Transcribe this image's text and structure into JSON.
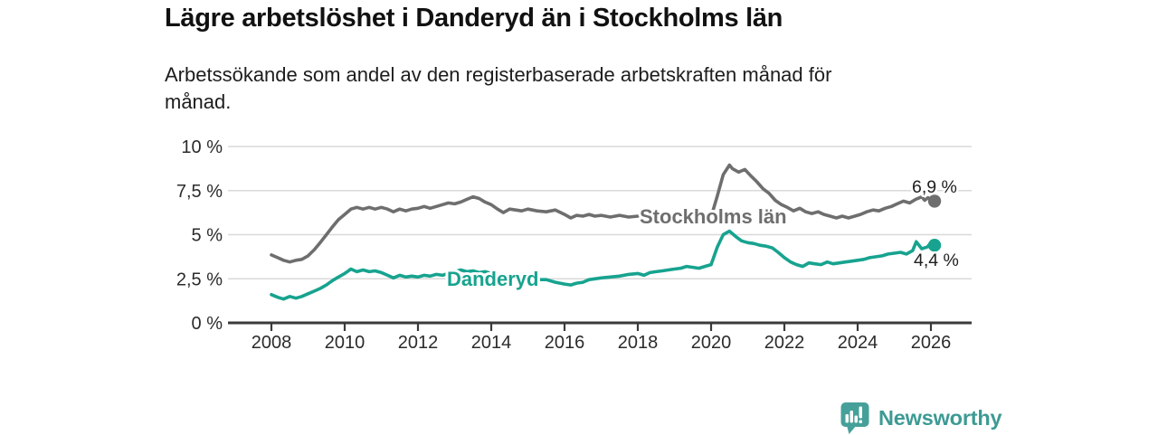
{
  "chart_data": {
    "type": "line",
    "title": "Lägre arbetslöshet i Danderyd än i Stockholms län",
    "subtitle_lines": [
      "Arbetssökande som andel av den registerbaserade arbetskraften månad för",
      "månad."
    ],
    "xlabel": "",
    "ylabel": "",
    "ylim": [
      0,
      10
    ],
    "xlim": [
      2006.8,
      2027.1
    ],
    "grid": "horizontal",
    "legend": "inline-labels",
    "unit": "%",
    "colors": {
      "gridline": "#d9d9d9",
      "axis": "#3a3a3a",
      "tick_text": "#2b2b2b"
    },
    "yticks": [
      {
        "value": 0,
        "label": "0 %"
      },
      {
        "value": 2.5,
        "label": "2,5 %"
      },
      {
        "value": 5,
        "label": "5 %"
      },
      {
        "value": 7.5,
        "label": "7,5 %"
      },
      {
        "value": 10,
        "label": "10 %"
      }
    ],
    "xticks": [
      {
        "value": 2008,
        "label": "2008"
      },
      {
        "value": 2010,
        "label": "2010"
      },
      {
        "value": 2012,
        "label": "2012"
      },
      {
        "value": 2014,
        "label": "2014"
      },
      {
        "value": 2016,
        "label": "2016"
      },
      {
        "value": 2018,
        "label": "2018"
      },
      {
        "value": 2020,
        "label": "2020"
      },
      {
        "value": 2022,
        "label": "2022"
      },
      {
        "value": 2024,
        "label": "2024"
      },
      {
        "value": 2026,
        "label": "2026"
      }
    ],
    "series": [
      {
        "id": "stockholms-lan",
        "name": "Stockholms län",
        "color": "#6e6e6e",
        "end_label": "6,9 %",
        "end_value": 6.9,
        "points": [
          [
            2008.0,
            3.85
          ],
          [
            2008.17,
            3.7
          ],
          [
            2008.33,
            3.55
          ],
          [
            2008.5,
            3.45
          ],
          [
            2008.67,
            3.55
          ],
          [
            2008.83,
            3.6
          ],
          [
            2009.0,
            3.8
          ],
          [
            2009.17,
            4.15
          ],
          [
            2009.33,
            4.55
          ],
          [
            2009.5,
            5.0
          ],
          [
            2009.67,
            5.45
          ],
          [
            2009.83,
            5.85
          ],
          [
            2010.0,
            6.15
          ],
          [
            2010.17,
            6.45
          ],
          [
            2010.33,
            6.55
          ],
          [
            2010.5,
            6.45
          ],
          [
            2010.67,
            6.55
          ],
          [
            2010.83,
            6.45
          ],
          [
            2011.0,
            6.55
          ],
          [
            2011.17,
            6.45
          ],
          [
            2011.33,
            6.3
          ],
          [
            2011.5,
            6.45
          ],
          [
            2011.67,
            6.35
          ],
          [
            2011.83,
            6.45
          ],
          [
            2012.0,
            6.5
          ],
          [
            2012.17,
            6.6
          ],
          [
            2012.33,
            6.5
          ],
          [
            2012.5,
            6.6
          ],
          [
            2012.67,
            6.7
          ],
          [
            2012.83,
            6.8
          ],
          [
            2013.0,
            6.75
          ],
          [
            2013.17,
            6.85
          ],
          [
            2013.33,
            7.0
          ],
          [
            2013.5,
            7.15
          ],
          [
            2013.67,
            7.05
          ],
          [
            2013.83,
            6.85
          ],
          [
            2014.0,
            6.7
          ],
          [
            2014.17,
            6.45
          ],
          [
            2014.33,
            6.25
          ],
          [
            2014.5,
            6.45
          ],
          [
            2014.67,
            6.4
          ],
          [
            2014.83,
            6.35
          ],
          [
            2015.0,
            6.45
          ],
          [
            2015.25,
            6.35
          ],
          [
            2015.5,
            6.3
          ],
          [
            2015.75,
            6.4
          ],
          [
            2016.0,
            6.15
          ],
          [
            2016.17,
            5.95
          ],
          [
            2016.33,
            6.1
          ],
          [
            2016.5,
            6.05
          ],
          [
            2016.67,
            6.15
          ],
          [
            2016.83,
            6.05
          ],
          [
            2017.0,
            6.1
          ],
          [
            2017.25,
            6.0
          ],
          [
            2017.5,
            6.1
          ],
          [
            2017.75,
            6.0
          ],
          [
            2018.0,
            6.05
          ],
          [
            2018.25,
            6.0
          ],
          [
            2018.5,
            6.05
          ],
          [
            2018.75,
            6.0
          ],
          [
            2019.0,
            5.95
          ],
          [
            2019.25,
            5.8
          ],
          [
            2019.5,
            5.75
          ],
          [
            2019.75,
            5.85
          ],
          [
            2020.0,
            6.0
          ],
          [
            2020.17,
            7.2
          ],
          [
            2020.33,
            8.4
          ],
          [
            2020.5,
            8.95
          ],
          [
            2020.58,
            8.75
          ],
          [
            2020.75,
            8.55
          ],
          [
            2020.92,
            8.7
          ],
          [
            2021.08,
            8.35
          ],
          [
            2021.25,
            8.0
          ],
          [
            2021.42,
            7.6
          ],
          [
            2021.58,
            7.35
          ],
          [
            2021.75,
            6.95
          ],
          [
            2021.92,
            6.7
          ],
          [
            2022.08,
            6.55
          ],
          [
            2022.25,
            6.35
          ],
          [
            2022.42,
            6.5
          ],
          [
            2022.58,
            6.3
          ],
          [
            2022.75,
            6.2
          ],
          [
            2022.92,
            6.3
          ],
          [
            2023.08,
            6.15
          ],
          [
            2023.25,
            6.05
          ],
          [
            2023.42,
            5.95
          ],
          [
            2023.58,
            6.05
          ],
          [
            2023.75,
            5.95
          ],
          [
            2023.92,
            6.05
          ],
          [
            2024.08,
            6.15
          ],
          [
            2024.25,
            6.3
          ],
          [
            2024.42,
            6.4
          ],
          [
            2024.58,
            6.35
          ],
          [
            2024.75,
            6.5
          ],
          [
            2024.92,
            6.6
          ],
          [
            2025.08,
            6.75
          ],
          [
            2025.25,
            6.9
          ],
          [
            2025.42,
            6.8
          ],
          [
            2025.58,
            7.0
          ],
          [
            2025.75,
            7.15
          ],
          [
            2025.83,
            6.95
          ],
          [
            2025.92,
            7.1
          ],
          [
            2026.0,
            6.95
          ],
          [
            2026.1,
            6.9
          ]
        ]
      },
      {
        "id": "danderyd",
        "name": "Danderyd",
        "color": "#17a38f",
        "end_label": "4,4 %",
        "end_value": 4.4,
        "points": [
          [
            2008.0,
            1.6
          ],
          [
            2008.17,
            1.45
          ],
          [
            2008.33,
            1.35
          ],
          [
            2008.5,
            1.5
          ],
          [
            2008.67,
            1.4
          ],
          [
            2008.83,
            1.5
          ],
          [
            2009.0,
            1.65
          ],
          [
            2009.17,
            1.8
          ],
          [
            2009.33,
            1.95
          ],
          [
            2009.5,
            2.15
          ],
          [
            2009.67,
            2.4
          ],
          [
            2009.83,
            2.6
          ],
          [
            2010.0,
            2.8
          ],
          [
            2010.17,
            3.05
          ],
          [
            2010.33,
            2.9
          ],
          [
            2010.5,
            3.0
          ],
          [
            2010.67,
            2.9
          ],
          [
            2010.83,
            2.95
          ],
          [
            2011.0,
            2.85
          ],
          [
            2011.17,
            2.7
          ],
          [
            2011.33,
            2.55
          ],
          [
            2011.5,
            2.7
          ],
          [
            2011.67,
            2.6
          ],
          [
            2011.83,
            2.65
          ],
          [
            2012.0,
            2.6
          ],
          [
            2012.17,
            2.7
          ],
          [
            2012.33,
            2.65
          ],
          [
            2012.5,
            2.75
          ],
          [
            2012.67,
            2.7
          ],
          [
            2012.83,
            2.8
          ],
          [
            2013.0,
            2.9
          ],
          [
            2013.17,
            3.0
          ],
          [
            2013.33,
            2.9
          ],
          [
            2013.5,
            2.95
          ],
          [
            2013.67,
            2.85
          ],
          [
            2013.83,
            2.9
          ],
          [
            2014.0,
            2.8
          ],
          [
            2014.25,
            2.7
          ],
          [
            2014.5,
            2.6
          ],
          [
            2014.75,
            2.55
          ],
          [
            2015.0,
            2.5
          ],
          [
            2015.25,
            2.45
          ],
          [
            2015.5,
            2.45
          ],
          [
            2015.75,
            2.3
          ],
          [
            2016.0,
            2.2
          ],
          [
            2016.17,
            2.15
          ],
          [
            2016.33,
            2.25
          ],
          [
            2016.5,
            2.3
          ],
          [
            2016.67,
            2.45
          ],
          [
            2016.83,
            2.5
          ],
          [
            2017.0,
            2.55
          ],
          [
            2017.25,
            2.6
          ],
          [
            2017.5,
            2.65
          ],
          [
            2017.75,
            2.75
          ],
          [
            2018.0,
            2.8
          ],
          [
            2018.17,
            2.7
          ],
          [
            2018.33,
            2.85
          ],
          [
            2018.5,
            2.9
          ],
          [
            2018.67,
            2.95
          ],
          [
            2018.83,
            3.0
          ],
          [
            2019.0,
            3.05
          ],
          [
            2019.17,
            3.1
          ],
          [
            2019.33,
            3.2
          ],
          [
            2019.5,
            3.15
          ],
          [
            2019.67,
            3.1
          ],
          [
            2019.83,
            3.2
          ],
          [
            2020.0,
            3.3
          ],
          [
            2020.17,
            4.3
          ],
          [
            2020.33,
            5.0
          ],
          [
            2020.5,
            5.2
          ],
          [
            2020.67,
            4.9
          ],
          [
            2020.83,
            4.65
          ],
          [
            2021.0,
            4.55
          ],
          [
            2021.17,
            4.5
          ],
          [
            2021.33,
            4.4
          ],
          [
            2021.5,
            4.35
          ],
          [
            2021.67,
            4.25
          ],
          [
            2021.83,
            4.0
          ],
          [
            2022.0,
            3.7
          ],
          [
            2022.17,
            3.45
          ],
          [
            2022.33,
            3.3
          ],
          [
            2022.5,
            3.2
          ],
          [
            2022.67,
            3.4
          ],
          [
            2022.83,
            3.35
          ],
          [
            2023.0,
            3.3
          ],
          [
            2023.17,
            3.45
          ],
          [
            2023.33,
            3.35
          ],
          [
            2023.5,
            3.4
          ],
          [
            2023.67,
            3.45
          ],
          [
            2023.83,
            3.5
          ],
          [
            2024.0,
            3.55
          ],
          [
            2024.17,
            3.6
          ],
          [
            2024.33,
            3.7
          ],
          [
            2024.5,
            3.75
          ],
          [
            2024.67,
            3.8
          ],
          [
            2024.83,
            3.9
          ],
          [
            2025.0,
            3.95
          ],
          [
            2025.17,
            4.0
          ],
          [
            2025.33,
            3.9
          ],
          [
            2025.5,
            4.1
          ],
          [
            2025.6,
            4.6
          ],
          [
            2025.75,
            4.2
          ],
          [
            2025.9,
            4.3
          ],
          [
            2026.0,
            4.55
          ],
          [
            2026.1,
            4.4
          ]
        ]
      }
    ]
  },
  "footer": {
    "brand": "Newsworthy",
    "brand_color": "#3d9a94",
    "logo_color": "#46a09a",
    "logo_icon": "newsworthy-bar-chart-bubble-icon"
  }
}
